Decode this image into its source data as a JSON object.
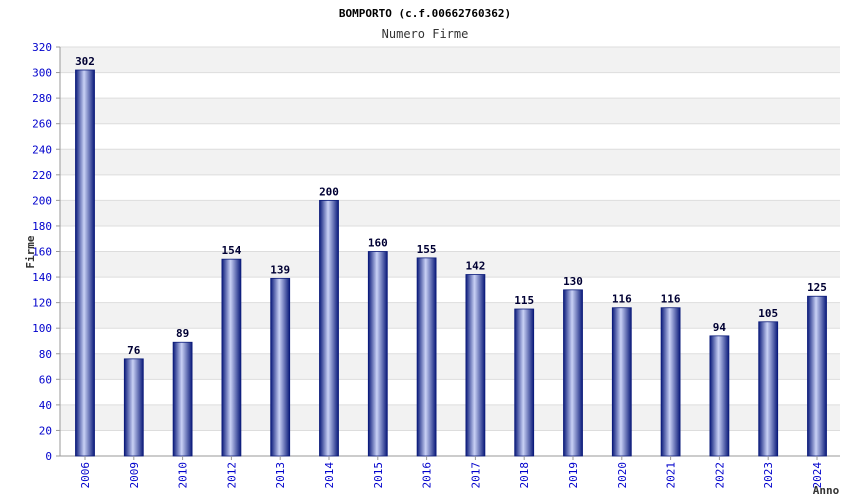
{
  "chart_data": {
    "type": "bar",
    "title": "BOMPORTO (c.f.00662760362)",
    "subtitle": "Numero Firme",
    "xlabel": "Anno",
    "ylabel": "Firme",
    "categories": [
      "2006",
      "2009",
      "2010",
      "2012",
      "2013",
      "2014",
      "2015",
      "2016",
      "2017",
      "2018",
      "2019",
      "2020",
      "2021",
      "2022",
      "2023",
      "2024"
    ],
    "values": [
      302,
      76,
      89,
      154,
      139,
      200,
      160,
      155,
      142,
      115,
      130,
      116,
      116,
      94,
      105,
      125
    ],
    "ylim": [
      0,
      320
    ],
    "yticks": [
      0,
      20,
      40,
      60,
      80,
      100,
      120,
      140,
      160,
      180,
      200,
      220,
      240,
      260,
      280,
      300,
      320
    ],
    "grid": true,
    "legend": "none",
    "colors": {
      "bar_dark": "#0a1a7a",
      "bar_light": "#c9d1f5",
      "band": "#f2f2f2",
      "tick_text": "#0000cc"
    }
  }
}
